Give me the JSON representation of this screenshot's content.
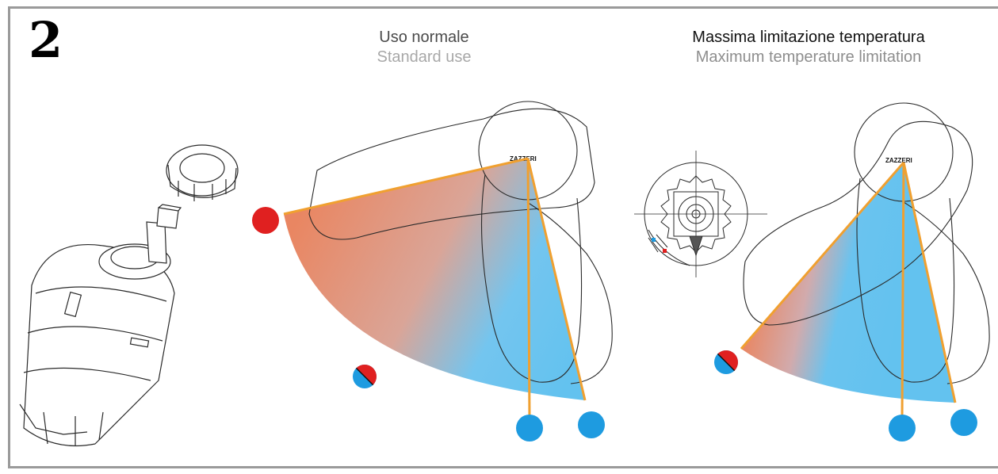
{
  "step_number": "2",
  "panels": {
    "normal": {
      "label_it": "Uso normale",
      "label_en": "Standard use",
      "brand": "ZAZZERI"
    },
    "max_limitation": {
      "label_it": "Massima limitazione temperatura",
      "label_en": "Maximum temperature limitation",
      "brand": "ZAZZERI"
    }
  },
  "colors": {
    "hot": "#e02020",
    "cold": "#1e9be0",
    "warm_gradient": "#e8805a",
    "cool_gradient": "#5bbfee",
    "limit_line": "#f0a030",
    "outline": "#2a2a2a",
    "frame": "#9a9a9a"
  },
  "icons": [
    "cartridge-icon",
    "ring-nut-icon",
    "handle-outline-icon",
    "hot-dot-icon",
    "cold-dot-icon",
    "mixed-dot-icon",
    "limiter-gear-icon"
  ]
}
